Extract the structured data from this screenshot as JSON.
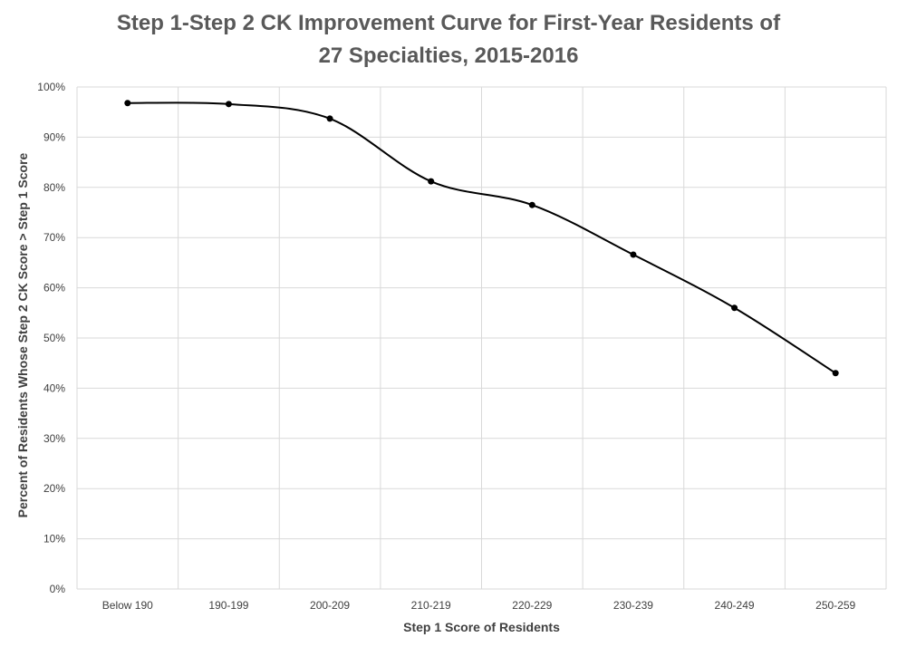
{
  "chart_data": {
    "type": "line",
    "title_line1": "Step 1-Step 2 CK Improvement Curve for First-Year Residents of",
    "title_line2": "27 Specialties, 2015-2016",
    "xlabel": "Step 1 Score of Residents",
    "ylabel": "Percent  of Residents Whose Step 2 CK Score > Step 1 Score",
    "categories": [
      "Below 190",
      "190-199",
      "200-209",
      "210-219",
      "220-229",
      "230-239",
      "240-249",
      "250-259"
    ],
    "series": [
      {
        "values": [
          96.8,
          96.6,
          93.7,
          81.2,
          76.5,
          66.6,
          56.0,
          43.0
        ]
      }
    ],
    "ylim": [
      0,
      100
    ],
    "yticks": [
      0,
      10,
      20,
      30,
      40,
      50,
      60,
      70,
      80,
      90,
      100
    ],
    "ytick_labels": [
      "0%",
      "10%",
      "20%",
      "30%",
      "40%",
      "50%",
      "60%",
      "70%",
      "80%",
      "90%",
      "100%"
    ],
    "grid": true,
    "smooth": true,
    "line_color": "#000000",
    "grid_color": "#d9d9d9"
  }
}
